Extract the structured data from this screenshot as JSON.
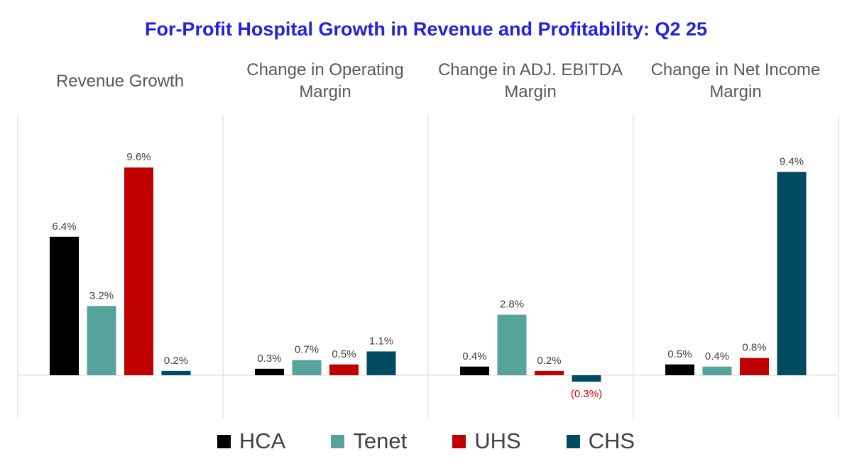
{
  "chart_data": {
    "type": "bar",
    "title": "For-Profit Hospital Growth in Revenue and Profitability: Q2 25",
    "title_color": "#2222dd",
    "series_colors": {
      "HCA": "#000000",
      "Tenet": "#55a39a",
      "UHS": "#c00000",
      "CHS": "#004b5f"
    },
    "negative_label_color": "#e00000",
    "legend": [
      "HCA",
      "Tenet",
      "UHS",
      "CHS"
    ],
    "panels": [
      {
        "title": "Revenue Growth",
        "values": [
          6.4,
          3.2,
          9.6,
          0.2
        ],
        "labels": [
          "6.4%",
          "3.2%",
          "9.6%",
          "0.2%"
        ]
      },
      {
        "title": "Change in Operating Margin",
        "values": [
          0.3,
          0.7,
          0.5,
          1.1
        ],
        "labels": [
          "0.3%",
          "0.7%",
          "0.5%",
          "1.1%"
        ]
      },
      {
        "title": "Change in ADJ. EBITDA Margin",
        "values": [
          0.4,
          2.8,
          0.2,
          -0.3
        ],
        "labels": [
          "0.4%",
          "2.8%",
          "0.2%",
          "(0.3%)"
        ]
      },
      {
        "title": "Change in Net Income Margin",
        "values": [
          0.5,
          0.4,
          0.8,
          9.4
        ],
        "labels": [
          "0.5%",
          "0.4%",
          "0.8%",
          "9.4%"
        ]
      }
    ]
  }
}
